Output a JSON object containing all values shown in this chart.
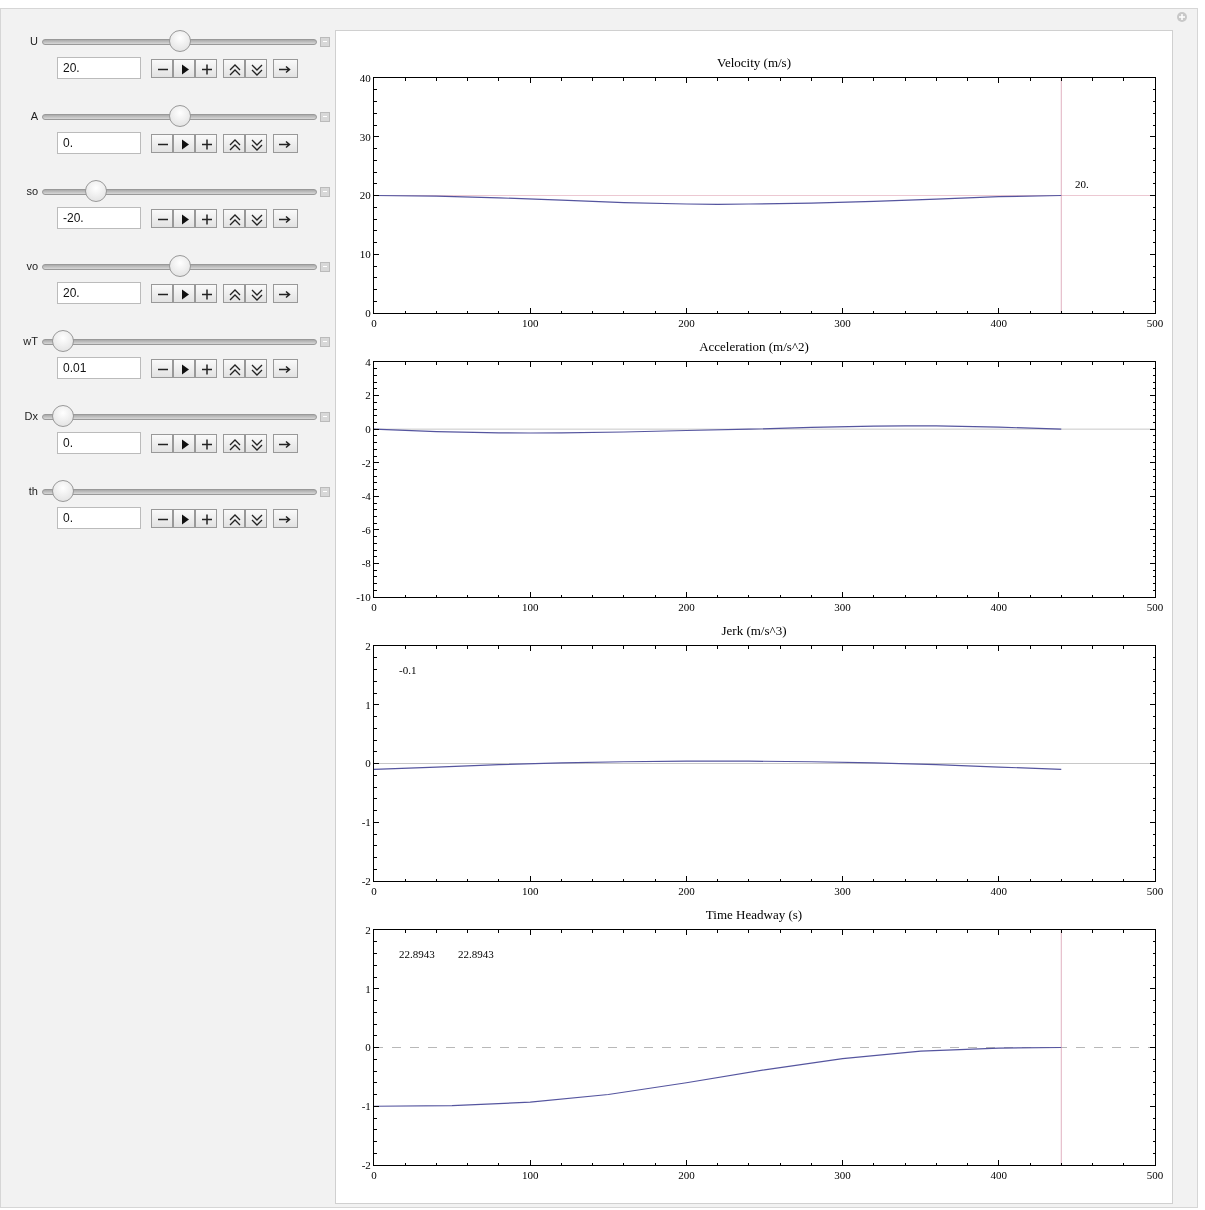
{
  "chart_data": [
    {
      "type": "other",
      "annotations": [
        "U",
        "20.",
        "A",
        "0.",
        "so",
        "-20.",
        "vo",
        "20.",
        "wT",
        "0.01",
        "Dx",
        "0.",
        "th",
        "0."
      ]
    },
    {
      "type": "line",
      "title": "Velocity (m/s)",
      "xlim": [
        0,
        500
      ],
      "xticks": [
        0,
        100,
        200,
        300,
        400,
        500
      ],
      "ylim": [
        0,
        40
      ],
      "yticks": [
        0,
        10,
        20,
        30,
        40
      ],
      "grid": false,
      "series": [
        {
          "color": "#55559f",
          "x": [
            0,
            40,
            80,
            120,
            160,
            200,
            220,
            240,
            280,
            320,
            360,
            400,
            440
          ],
          "values": [
            20,
            19.9,
            19.6,
            19.2,
            18.8,
            18.55,
            18.5,
            18.55,
            18.7,
            19.0,
            19.4,
            19.8,
            20
          ]
        }
      ],
      "ref_lines": [
        {
          "axis": "y",
          "value": 20,
          "color": "#ecc8d2"
        },
        {
          "axis": "x",
          "value": 440,
          "color": "#e0b0c0"
        }
      ],
      "annotations": [
        {
          "text": "20.",
          "x": 440,
          "y": 20
        }
      ]
    },
    {
      "type": "line",
      "title": "Acceleration (m/s^2)",
      "xlim": [
        0,
        500
      ],
      "xticks": [
        0,
        100,
        200,
        300,
        400,
        500
      ],
      "ylim": [
        -10,
        4
      ],
      "yticks": [
        -10,
        -8,
        -6,
        -4,
        -2,
        0,
        2,
        4
      ],
      "grid": false,
      "series": [
        {
          "color": "#55559f",
          "x": [
            0,
            40,
            80,
            100,
            120,
            160,
            200,
            240,
            280,
            320,
            340,
            360,
            400,
            440
          ],
          "values": [
            0,
            -0.15,
            -0.22,
            -0.23,
            -0.22,
            -0.17,
            -0.08,
            0,
            0.1,
            0.18,
            0.2,
            0.19,
            0.12,
            0
          ]
        }
      ],
      "ref_lines": [
        {
          "axis": "y",
          "value": 0,
          "color": "#c8c8c8"
        }
      ]
    },
    {
      "type": "line",
      "title": "Jerk (m/s^3)",
      "xlim": [
        0,
        500
      ],
      "xticks": [
        0,
        100,
        200,
        300,
        400,
        500
      ],
      "ylim": [
        -2,
        2
      ],
      "yticks": [
        -2,
        -1,
        0,
        1,
        2
      ],
      "grid": false,
      "series": [
        {
          "color": "#55559f",
          "x": [
            0,
            40,
            80,
            120,
            160,
            200,
            220,
            240,
            280,
            320,
            360,
            400,
            440
          ],
          "values": [
            -0.1,
            -0.06,
            -0.02,
            0.01,
            0.03,
            0.04,
            0.04,
            0.04,
            0.03,
            0.01,
            -0.02,
            -0.06,
            -0.1
          ]
        }
      ],
      "ref_lines": [
        {
          "axis": "y",
          "value": 0,
          "color": "#c8c8c8"
        }
      ],
      "annotations": [
        "-0.1"
      ]
    },
    {
      "type": "line",
      "title": "Time Headway (s)",
      "xlim": [
        0,
        500
      ],
      "xticks": [
        0,
        100,
        200,
        300,
        400,
        500
      ],
      "ylim": [
        -2,
        2
      ],
      "yticks": [
        -2,
        -1,
        0,
        1,
        2
      ],
      "grid": false,
      "series": [
        {
          "color": "#55559f",
          "x": [
            0,
            50,
            100,
            150,
            200,
            250,
            300,
            350,
            400,
            440
          ],
          "values": [
            -1,
            -0.99,
            -0.93,
            -0.8,
            -0.6,
            -0.38,
            -0.19,
            -0.06,
            -0.01,
            0
          ]
        }
      ],
      "ref_lines": [
        {
          "axis": "y",
          "value": 0,
          "color": "#b8b8b8",
          "line_style": "dashed"
        },
        {
          "axis": "x",
          "value": 440,
          "color": "#e0b0c0"
        }
      ],
      "annotations": [
        "22.8943",
        "22.8943"
      ]
    }
  ]
}
